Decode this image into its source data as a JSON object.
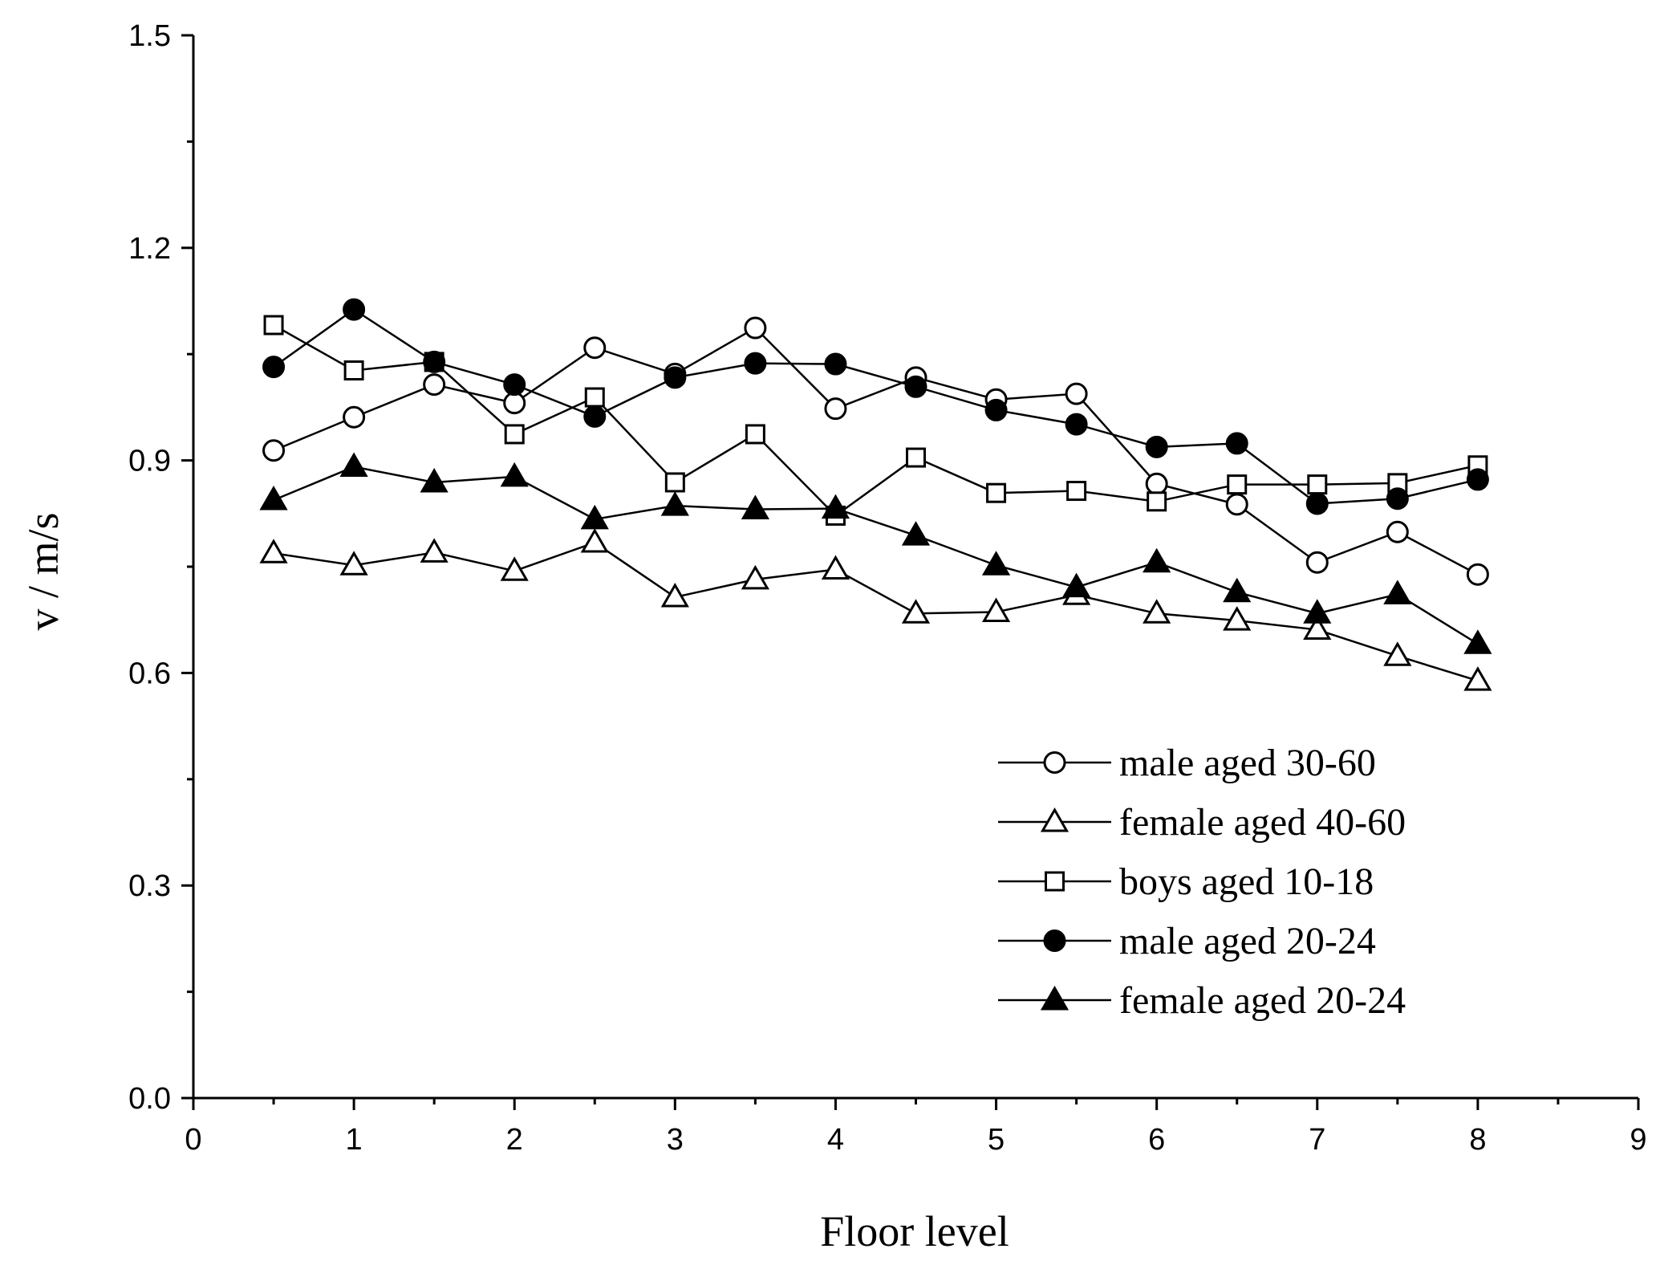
{
  "chart_data": {
    "type": "line",
    "title": "",
    "xlabel": "Floor level",
    "ylabel": "v / m/s",
    "xlim": [
      0,
      9
    ],
    "ylim": [
      0.0,
      1.5
    ],
    "x_major_ticks": [
      "0",
      "1",
      "2",
      "3",
      "4",
      "5",
      "6",
      "7",
      "8",
      "9"
    ],
    "y_major_ticks": [
      "0.0",
      "0.3",
      "0.6",
      "0.9",
      "1.2",
      "1.5"
    ],
    "grid": false,
    "legend_position": "bottom-right",
    "x": [
      0.5,
      1,
      1.5,
      2,
      2.5,
      3,
      3.5,
      4,
      4.5,
      5,
      5.5,
      6,
      6.5,
      7,
      7.5,
      8
    ],
    "series": [
      {
        "name": "male aged 30-60",
        "marker": "circle-open",
        "values": [
          0.914,
          0.961,
          1.007,
          0.981,
          1.059,
          1.022,
          1.087,
          0.973,
          1.017,
          0.986,
          0.994,
          0.867,
          0.838,
          0.756,
          0.799,
          0.739
        ]
      },
      {
        "name": "female aged 40-60",
        "marker": "triangle-open",
        "values": [
          0.769,
          0.752,
          0.77,
          0.744,
          0.784,
          0.707,
          0.732,
          0.746,
          0.684,
          0.686,
          0.71,
          0.684,
          0.674,
          0.661,
          0.624,
          0.589
        ]
      },
      {
        "name": "boys aged 10-18",
        "marker": "square-open",
        "values": [
          1.091,
          1.027,
          1.039,
          0.937,
          0.989,
          0.869,
          0.937,
          0.822,
          0.904,
          0.854,
          0.857,
          0.842,
          0.866,
          0.866,
          0.868,
          0.893
        ]
      },
      {
        "name": "male aged 20-24",
        "marker": "circle-filled",
        "values": [
          1.032,
          1.113,
          1.039,
          1.007,
          0.962,
          1.017,
          1.037,
          1.036,
          1.004,
          0.971,
          0.951,
          0.919,
          0.924,
          0.839,
          0.846,
          0.873
        ]
      },
      {
        "name": "female aged 20-24",
        "marker": "triangle-filled",
        "values": [
          0.844,
          0.891,
          0.869,
          0.877,
          0.817,
          0.836,
          0.831,
          0.832,
          0.794,
          0.752,
          0.721,
          0.756,
          0.714,
          0.684,
          0.711,
          0.641
        ]
      }
    ]
  }
}
